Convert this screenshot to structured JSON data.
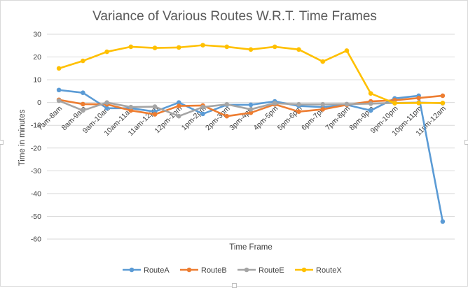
{
  "chart_data": {
    "type": "line",
    "title": "Variance of Various Routes W.R.T. Time Frames",
    "xlabel": "Time Frame",
    "ylabel": "Time in minutes",
    "ylim": [
      -60,
      30
    ],
    "yticks": [
      30,
      20,
      10,
      0,
      -10,
      -20,
      -30,
      -40,
      -50,
      -60
    ],
    "grid": true,
    "legend_position": "bottom",
    "categories": [
      "7am-8am",
      "8am-9am",
      "9am-10am",
      "10am-11am",
      "11am-12pm",
      "12pm-1pm",
      "1pm-2pm",
      "2pm-3pm",
      "3pm-4pm",
      "4pm-5pm",
      "5pm-6pm",
      "6pm-7pm",
      "7pm-8pm",
      "8pm-9pm",
      "9pm-10pm",
      "10pm-11pm",
      "11pm-12am"
    ],
    "series": [
      {
        "name": "RouteA",
        "color": "#5b9bd5",
        "values": [
          5.5,
          4.3,
          -2.5,
          -2.5,
          -4.0,
          0.0,
          -5.0,
          -1.0,
          -1.0,
          0.5,
          -1.5,
          -2.0,
          -1.0,
          -3.5,
          1.8,
          3.0,
          -52.3
        ]
      },
      {
        "name": "RouteB",
        "color": "#ed7d31",
        "values": [
          1.2,
          -0.7,
          -0.8,
          -3.5,
          -5.2,
          -1.5,
          -1.3,
          -6.0,
          -4.5,
          -0.8,
          -4.0,
          -3.0,
          -1.0,
          0.5,
          1.0,
          2.0,
          3.0
        ]
      },
      {
        "name": "RouteE",
        "color": "#a5a5a5",
        "values": [
          0.8,
          -3.5,
          0.0,
          -2.0,
          -1.8,
          -6.0,
          -2.0,
          -0.8,
          -3.0,
          -0.3,
          -0.8,
          -0.8,
          -0.7,
          -0.5,
          -0.2,
          0.0,
          -0.3
        ]
      },
      {
        "name": "RouteX",
        "color": "#ffc000",
        "values": [
          15.0,
          18.3,
          22.3,
          24.5,
          24.0,
          24.2,
          25.2,
          24.5,
          23.3,
          24.5,
          23.3,
          18.0,
          22.8,
          4.0,
          -0.3,
          -0.2,
          -0.2
        ]
      }
    ]
  }
}
